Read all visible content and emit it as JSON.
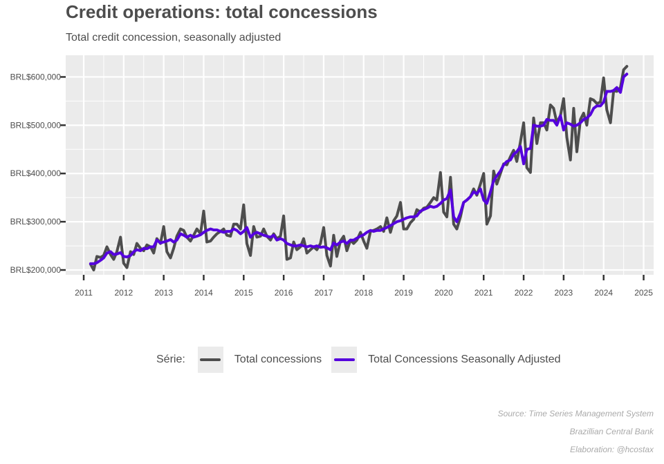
{
  "title": "Credit operations: total concessions",
  "subtitle": "Total credit concession, seasonally adjusted",
  "legend": {
    "title": "Série:",
    "items": [
      {
        "name": "Total concessions",
        "color": "#4d4d4d"
      },
      {
        "name": "Total Concessions Seasonally Adjusted",
        "color": "#5500dd"
      }
    ]
  },
  "captions": [
    "Source: Time Series Management System",
    "Brazillian Central Bank",
    "Elaboration: @hcostax"
  ],
  "chart_data": {
    "type": "line",
    "xlabel": "",
    "ylabel": "",
    "x_ticks": [
      2011,
      2012,
      2013,
      2014,
      2015,
      2016,
      2017,
      2018,
      2019,
      2020,
      2021,
      2022,
      2023,
      2024,
      2025
    ],
    "y_ticks": [
      200000,
      300000,
      400000,
      500000,
      600000
    ],
    "y_tick_labels": [
      "BRL$200,000",
      "BRL$300,000",
      "BRL$400,000",
      "BRL$500,000",
      "BRL$600,000"
    ],
    "xlim": [
      2010.55,
      2025.25
    ],
    "ylim": [
      190000,
      645000
    ],
    "grid": true,
    "legend_position": "bottom",
    "series": [
      {
        "name": "Total concessions",
        "color": "#4d4d4d",
        "x": [
          2011.17,
          2011.25,
          2011.33,
          2011.42,
          2011.5,
          2011.58,
          2011.67,
          2011.75,
          2011.83,
          2011.92,
          2012.0,
          2012.08,
          2012.17,
          2012.25,
          2012.33,
          2012.42,
          2012.5,
          2012.58,
          2012.67,
          2012.75,
          2012.83,
          2012.92,
          2013.0,
          2013.08,
          2013.17,
          2013.25,
          2013.33,
          2013.42,
          2013.5,
          2013.58,
          2013.67,
          2013.75,
          2013.83,
          2013.92,
          2014.0,
          2014.08,
          2014.17,
          2014.25,
          2014.33,
          2014.42,
          2014.5,
          2014.58,
          2014.67,
          2014.75,
          2014.83,
          2014.92,
          2015.0,
          2015.08,
          2015.17,
          2015.25,
          2015.33,
          2015.42,
          2015.5,
          2015.58,
          2015.67,
          2015.75,
          2015.83,
          2015.92,
          2016.0,
          2016.08,
          2016.17,
          2016.25,
          2016.33,
          2016.42,
          2016.5,
          2016.58,
          2016.67,
          2016.75,
          2016.83,
          2016.92,
          2017.0,
          2017.08,
          2017.17,
          2017.25,
          2017.33,
          2017.42,
          2017.5,
          2017.58,
          2017.67,
          2017.75,
          2017.83,
          2017.92,
          2018.0,
          2018.08,
          2018.17,
          2018.25,
          2018.33,
          2018.42,
          2018.5,
          2018.58,
          2018.67,
          2018.75,
          2018.83,
          2018.92,
          2019.0,
          2019.08,
          2019.17,
          2019.25,
          2019.33,
          2019.42,
          2019.5,
          2019.58,
          2019.67,
          2019.75,
          2019.83,
          2019.92,
          2020.0,
          2020.08,
          2020.17,
          2020.25,
          2020.33,
          2020.42,
          2020.5,
          2020.58,
          2020.67,
          2020.75,
          2020.83,
          2020.92,
          2021.0,
          2021.08,
          2021.17,
          2021.25,
          2021.33,
          2021.42,
          2021.5,
          2021.58,
          2021.67,
          2021.75,
          2021.83,
          2021.92,
          2022.0,
          2022.08,
          2022.17,
          2022.25,
          2022.33,
          2022.42,
          2022.5,
          2022.58,
          2022.67,
          2022.75,
          2022.83,
          2022.92,
          2023.0,
          2023.08,
          2023.17,
          2023.25,
          2023.33,
          2023.42,
          2023.5,
          2023.58,
          2023.67,
          2023.75,
          2023.83,
          2023.92,
          2024.0,
          2024.08,
          2024.17,
          2024.25,
          2024.33,
          2024.42,
          2024.5,
          2024.58
        ],
        "y": [
          212000,
          200000,
          228000,
          226000,
          230000,
          248000,
          232000,
          222000,
          238000,
          268000,
          214000,
          205000,
          238000,
          232000,
          255000,
          245000,
          240000,
          252000,
          248000,
          235000,
          265000,
          255000,
          290000,
          238000,
          225000,
          245000,
          270000,
          285000,
          282000,
          268000,
          260000,
          272000,
          285000,
          275000,
          322000,
          258000,
          260000,
          268000,
          275000,
          280000,
          285000,
          272000,
          270000,
          295000,
          295000,
          285000,
          335000,
          255000,
          230000,
          290000,
          268000,
          270000,
          285000,
          270000,
          262000,
          275000,
          265000,
          270000,
          312000,
          222000,
          225000,
          258000,
          242000,
          248000,
          265000,
          235000,
          242000,
          248000,
          242000,
          255000,
          288000,
          230000,
          208000,
          272000,
          228000,
          260000,
          270000,
          240000,
          262000,
          255000,
          262000,
          278000,
          260000,
          245000,
          280000,
          282000,
          285000,
          290000,
          280000,
          308000,
          278000,
          302000,
          312000,
          340000,
          285000,
          285000,
          298000,
          305000,
          325000,
          320000,
          328000,
          330000,
          340000,
          350000,
          345000,
          402000,
          320000,
          310000,
          392000,
          295000,
          285000,
          310000,
          340000,
          345000,
          352000,
          368000,
          355000,
          378000,
          400000,
          295000,
          312000,
          405000,
          378000,
          400000,
          420000,
          418000,
          435000,
          448000,
          425000,
          465000,
          505000,
          412000,
          402000,
          515000,
          462000,
          505000,
          505000,
          490000,
          542000,
          535000,
          505000,
          520000,
          555000,
          475000,
          428000,
          535000,
          445000,
          512000,
          525000,
          500000,
          555000,
          552000,
          545000,
          548000,
          598000,
          532000,
          505000,
          572000,
          570000,
          578000,
          615000,
          622000
        ]
      },
      {
        "name": "Total Concessions Seasonally Adjusted",
        "color": "#5500dd",
        "x": [
          2011.17,
          2011.25,
          2011.33,
          2011.42,
          2011.5,
          2011.58,
          2011.67,
          2011.75,
          2011.83,
          2011.92,
          2012.0,
          2012.08,
          2012.17,
          2012.25,
          2012.33,
          2012.42,
          2012.5,
          2012.58,
          2012.67,
          2012.75,
          2012.83,
          2012.92,
          2013.0,
          2013.08,
          2013.17,
          2013.25,
          2013.33,
          2013.42,
          2013.5,
          2013.58,
          2013.67,
          2013.75,
          2013.83,
          2013.92,
          2014.0,
          2014.08,
          2014.17,
          2014.25,
          2014.33,
          2014.42,
          2014.5,
          2014.58,
          2014.67,
          2014.75,
          2014.83,
          2014.92,
          2015.0,
          2015.08,
          2015.17,
          2015.25,
          2015.33,
          2015.42,
          2015.5,
          2015.58,
          2015.67,
          2015.75,
          2015.83,
          2015.92,
          2016.0,
          2016.08,
          2016.17,
          2016.25,
          2016.33,
          2016.42,
          2016.5,
          2016.58,
          2016.67,
          2016.75,
          2016.83,
          2016.92,
          2017.0,
          2017.08,
          2017.17,
          2017.25,
          2017.33,
          2017.42,
          2017.5,
          2017.58,
          2017.67,
          2017.75,
          2017.83,
          2017.92,
          2018.0,
          2018.08,
          2018.17,
          2018.25,
          2018.33,
          2018.42,
          2018.5,
          2018.58,
          2018.67,
          2018.75,
          2018.83,
          2018.92,
          2019.0,
          2019.08,
          2019.17,
          2019.25,
          2019.33,
          2019.42,
          2019.5,
          2019.58,
          2019.67,
          2019.75,
          2019.83,
          2019.92,
          2020.0,
          2020.08,
          2020.17,
          2020.25,
          2020.33,
          2020.42,
          2020.5,
          2020.58,
          2020.67,
          2020.75,
          2020.83,
          2020.92,
          2021.0,
          2021.08,
          2021.17,
          2021.25,
          2021.33,
          2021.42,
          2021.5,
          2021.58,
          2021.67,
          2021.75,
          2021.83,
          2021.92,
          2022.0,
          2022.08,
          2022.17,
          2022.25,
          2022.33,
          2022.42,
          2022.5,
          2022.58,
          2022.67,
          2022.75,
          2022.83,
          2022.92,
          2023.0,
          2023.08,
          2023.17,
          2023.25,
          2023.33,
          2023.42,
          2023.5,
          2023.58,
          2023.67,
          2023.75,
          2023.83,
          2023.92,
          2024.0,
          2024.08,
          2024.17,
          2024.25,
          2024.33,
          2024.42,
          2024.5,
          2024.58
        ],
        "y": [
          213000,
          213000,
          215000,
          220000,
          225000,
          235000,
          238000,
          232000,
          233000,
          236000,
          228000,
          227000,
          230000,
          238000,
          242000,
          240000,
          245000,
          244000,
          248000,
          248000,
          262000,
          256000,
          258000,
          260000,
          263000,
          258000,
          262000,
          275000,
          272000,
          268000,
          272000,
          268000,
          270000,
          273000,
          278000,
          282000,
          285000,
          283000,
          283000,
          280000,
          278000,
          280000,
          280000,
          285000,
          282000,
          275000,
          280000,
          288000,
          268000,
          275000,
          278000,
          275000,
          272000,
          270000,
          268000,
          272000,
          262000,
          265000,
          262000,
          255000,
          252000,
          250000,
          250000,
          252000,
          250000,
          248000,
          250000,
          248000,
          250000,
          247000,
          248000,
          246000,
          242000,
          256000,
          252000,
          258000,
          260000,
          255000,
          262000,
          262000,
          266000,
          270000,
          273000,
          278000,
          282000,
          280000,
          282000,
          282000,
          285000,
          288000,
          292000,
          296000,
          300000,
          302000,
          305000,
          308000,
          310000,
          310000,
          312000,
          322000,
          325000,
          328000,
          332000,
          330000,
          332000,
          338000,
          345000,
          348000,
          366000,
          310000,
          300000,
          318000,
          340000,
          345000,
          352000,
          362000,
          358000,
          368000,
          345000,
          338000,
          362000,
          385000,
          395000,
          405000,
          418000,
          425000,
          428000,
          440000,
          445000,
          456000,
          420000,
          450000,
          452000,
          500000,
          498000,
          498000,
          500000,
          512000,
          510000,
          510000,
          500000,
          520000,
          490000,
          505000,
          502000,
          498000,
          500000,
          505000,
          512000,
          515000,
          522000,
          535000,
          540000,
          540000,
          548000,
          570000,
          570000,
          572000,
          578000,
          568000,
          600000,
          606000
        ]
      }
    ]
  }
}
